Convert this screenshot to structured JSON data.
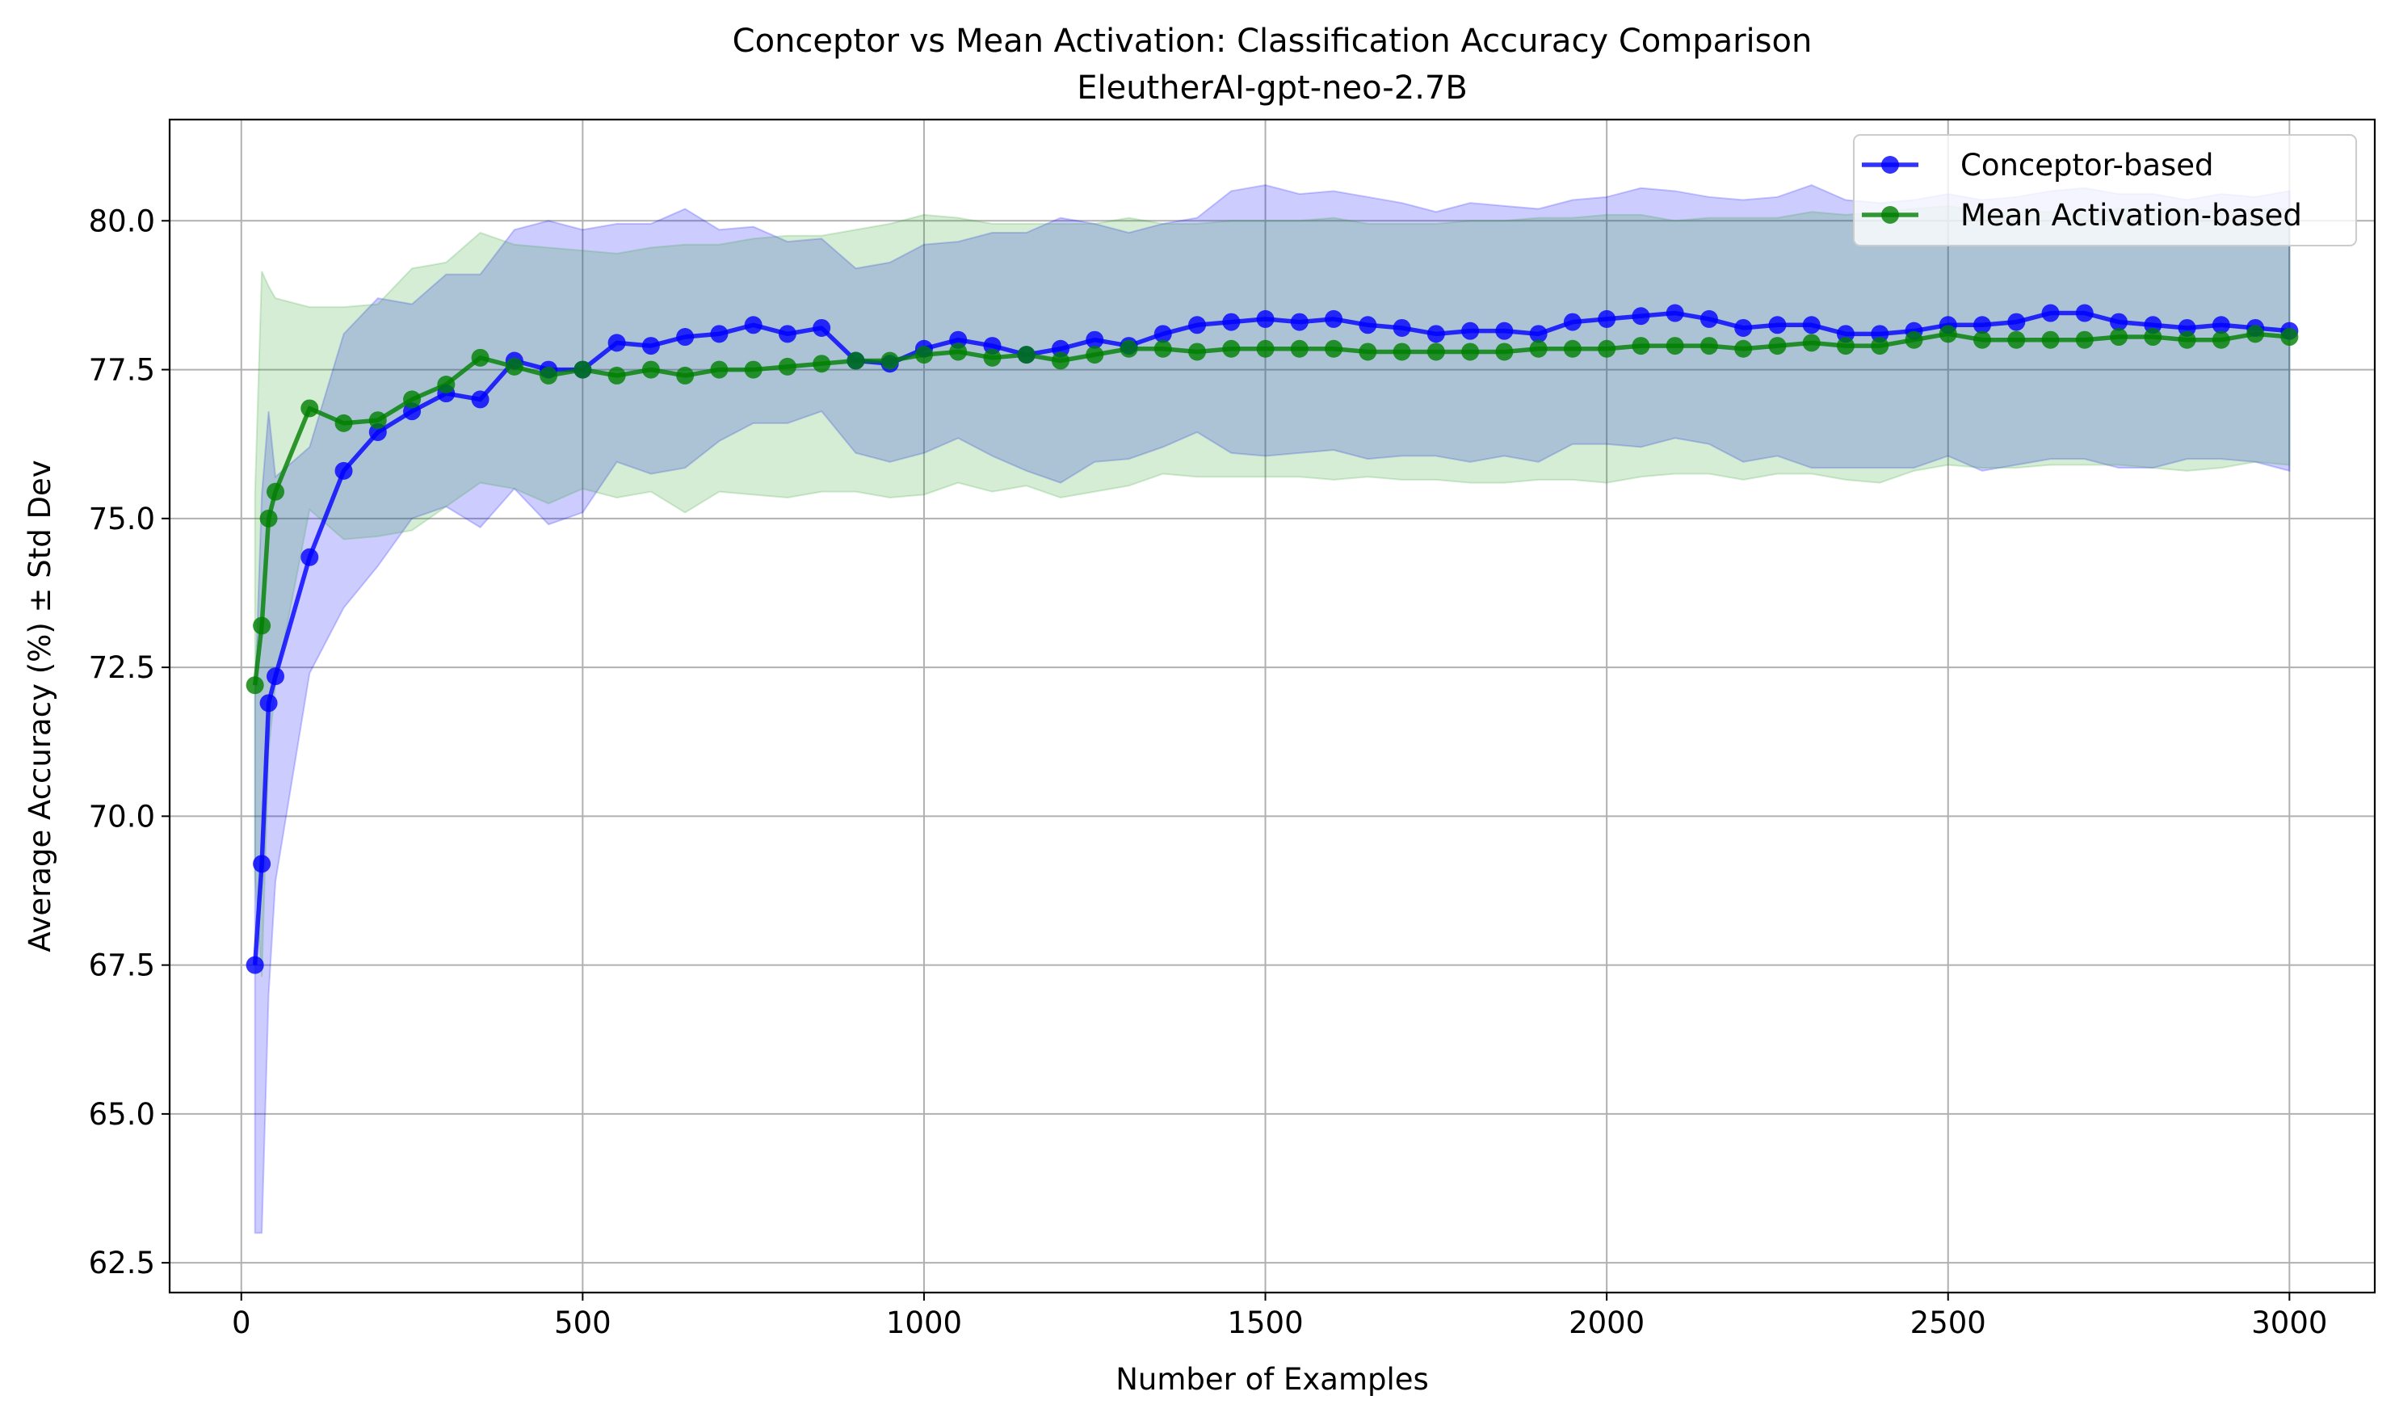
{
  "chart_data": {
    "type": "line",
    "title": "Conceptor vs Mean Activation: Classification Accuracy Comparison",
    "subtitle": "EleutherAI-gpt-neo-2.7B",
    "xlabel": "Number of Examples",
    "ylabel": "Average Accuracy (%) ± Std Dev",
    "xlim": [
      -105,
      3125
    ],
    "ylim": [
      62.0,
      81.7
    ],
    "xticks": [
      0,
      500,
      1000,
      1500,
      2000,
      2500,
      3000
    ],
    "xtick_labels": [
      "0",
      "500",
      "1000",
      "1500",
      "2000",
      "2500",
      "3000"
    ],
    "yticks": [
      62.5,
      65.0,
      67.5,
      70.0,
      72.5,
      75.0,
      77.5,
      80.0
    ],
    "ytick_labels": [
      "62.5",
      "65.0",
      "67.5",
      "70.0",
      "72.5",
      "75.0",
      "77.5",
      "80.0"
    ],
    "grid": true,
    "legend_position": "upper right",
    "x": [
      20,
      30,
      40,
      50,
      100,
      150,
      200,
      250,
      300,
      350,
      400,
      450,
      500,
      550,
      600,
      650,
      700,
      750,
      800,
      850,
      900,
      950,
      1000,
      1050,
      1100,
      1150,
      1200,
      1250,
      1300,
      1350,
      1400,
      1450,
      1500,
      1550,
      1600,
      1650,
      1700,
      1750,
      1800,
      1850,
      1900,
      1950,
      2000,
      2050,
      2100,
      2150,
      2200,
      2250,
      2300,
      2350,
      2400,
      2450,
      2500,
      2550,
      2600,
      2650,
      2700,
      2750,
      2800,
      2850,
      2900,
      2950,
      3000
    ],
    "series": [
      {
        "name": "Conceptor-based",
        "color": "#0000ff",
        "band_color": "#0000ff",
        "values": [
          67.5,
          69.2,
          71.9,
          72.35,
          74.35,
          75.8,
          76.45,
          76.8,
          77.1,
          77.0,
          77.65,
          77.5,
          77.5,
          77.95,
          77.9,
          78.05,
          78.1,
          78.25,
          78.1,
          78.2,
          77.65,
          77.6,
          77.85,
          78.0,
          77.9,
          77.75,
          77.85,
          78.0,
          77.9,
          78.1,
          78.25,
          78.3,
          78.35,
          78.3,
          78.35,
          78.25,
          78.2,
          78.1,
          78.15,
          78.15,
          78.1,
          78.3,
          78.35,
          78.4,
          78.45,
          78.35,
          78.2,
          78.25,
          78.25,
          78.1,
          78.1,
          78.15,
          78.25,
          78.25,
          78.3,
          78.45,
          78.45,
          78.3,
          78.25,
          78.2,
          78.25,
          78.2,
          78.15
        ],
        "std_upper": [
          72.0,
          75.4,
          76.8,
          75.7,
          76.2,
          78.1,
          78.7,
          78.6,
          79.1,
          79.1,
          79.85,
          80.0,
          79.85,
          79.95,
          79.95,
          80.2,
          79.85,
          79.9,
          79.65,
          79.7,
          79.2,
          79.3,
          79.6,
          79.65,
          79.8,
          79.8,
          80.05,
          79.95,
          79.8,
          79.95,
          80.05,
          80.5,
          80.6,
          80.45,
          80.5,
          80.4,
          80.3,
          80.15,
          80.3,
          80.25,
          80.2,
          80.35,
          80.4,
          80.55,
          80.5,
          80.4,
          80.35,
          80.4,
          80.6,
          80.35,
          80.3,
          80.35,
          80.45,
          80.35,
          80.4,
          80.5,
          80.55,
          80.45,
          80.45,
          80.35,
          80.45,
          80.4,
          80.5
        ],
        "std_lower": [
          63.0,
          63.0,
          67.0,
          68.9,
          72.4,
          73.5,
          74.2,
          75.0,
          75.2,
          74.85,
          75.5,
          74.9,
          75.1,
          75.95,
          75.75,
          75.85,
          76.3,
          76.6,
          76.6,
          76.8,
          76.1,
          75.95,
          76.1,
          76.35,
          76.05,
          75.8,
          75.6,
          75.95,
          76.0,
          76.2,
          76.45,
          76.1,
          76.05,
          76.1,
          76.15,
          76.0,
          76.05,
          76.05,
          75.95,
          76.05,
          75.95,
          76.25,
          76.25,
          76.2,
          76.35,
          76.25,
          75.95,
          76.05,
          75.85,
          75.85,
          75.85,
          75.85,
          76.05,
          75.8,
          75.9,
          76.0,
          76.0,
          75.85,
          75.85,
          76.0,
          76.0,
          75.95,
          75.8
        ]
      },
      {
        "name": "Mean Activation-based",
        "color": "#008000",
        "band_color": "#2ca02c",
        "values": [
          72.2,
          73.2,
          75.0,
          75.45,
          76.85,
          76.6,
          76.65,
          77.0,
          77.25,
          77.7,
          77.55,
          77.4,
          77.5,
          77.4,
          77.5,
          77.4,
          77.5,
          77.5,
          77.55,
          77.6,
          77.65,
          77.65,
          77.75,
          77.8,
          77.7,
          77.75,
          77.65,
          77.75,
          77.85,
          77.85,
          77.8,
          77.85,
          77.85,
          77.85,
          77.85,
          77.8,
          77.8,
          77.8,
          77.8,
          77.8,
          77.85,
          77.85,
          77.85,
          77.9,
          77.9,
          77.9,
          77.85,
          77.9,
          77.95,
          77.9,
          77.9,
          78.0,
          78.1,
          78.0,
          78.0,
          78.0,
          78.0,
          78.05,
          78.05,
          78.0,
          78.0,
          78.1,
          78.05
        ],
        "std_upper": [
          75.4,
          79.15,
          78.9,
          78.7,
          78.55,
          78.55,
          78.6,
          79.2,
          79.3,
          79.8,
          79.6,
          79.55,
          79.5,
          79.45,
          79.55,
          79.6,
          79.6,
          79.7,
          79.75,
          79.75,
          79.85,
          79.95,
          80.1,
          80.05,
          79.95,
          79.95,
          79.95,
          79.95,
          80.05,
          79.95,
          79.95,
          80.0,
          80.0,
          80.0,
          80.05,
          79.95,
          79.95,
          79.95,
          80.0,
          80.0,
          80.05,
          80.05,
          80.1,
          80.1,
          80.0,
          80.05,
          80.05,
          80.05,
          80.15,
          80.1,
          80.15,
          80.2,
          80.25,
          80.15,
          80.15,
          80.15,
          80.1,
          80.2,
          80.2,
          80.2,
          80.15,
          80.2,
          80.2
        ],
        "std_lower": [
          69.0,
          67.3,
          71.1,
          72.2,
          75.15,
          74.65,
          74.7,
          74.8,
          75.2,
          75.6,
          75.5,
          75.25,
          75.5,
          75.35,
          75.45,
          75.1,
          75.45,
          75.4,
          75.35,
          75.45,
          75.45,
          75.35,
          75.4,
          75.6,
          75.45,
          75.55,
          75.35,
          75.45,
          75.55,
          75.75,
          75.7,
          75.7,
          75.7,
          75.7,
          75.65,
          75.7,
          75.65,
          75.65,
          75.6,
          75.6,
          75.65,
          75.65,
          75.6,
          75.7,
          75.75,
          75.75,
          75.65,
          75.75,
          75.75,
          75.65,
          75.6,
          75.8,
          75.9,
          75.85,
          75.85,
          75.9,
          75.9,
          75.9,
          75.85,
          75.8,
          75.85,
          75.95,
          75.9
        ]
      }
    ]
  }
}
